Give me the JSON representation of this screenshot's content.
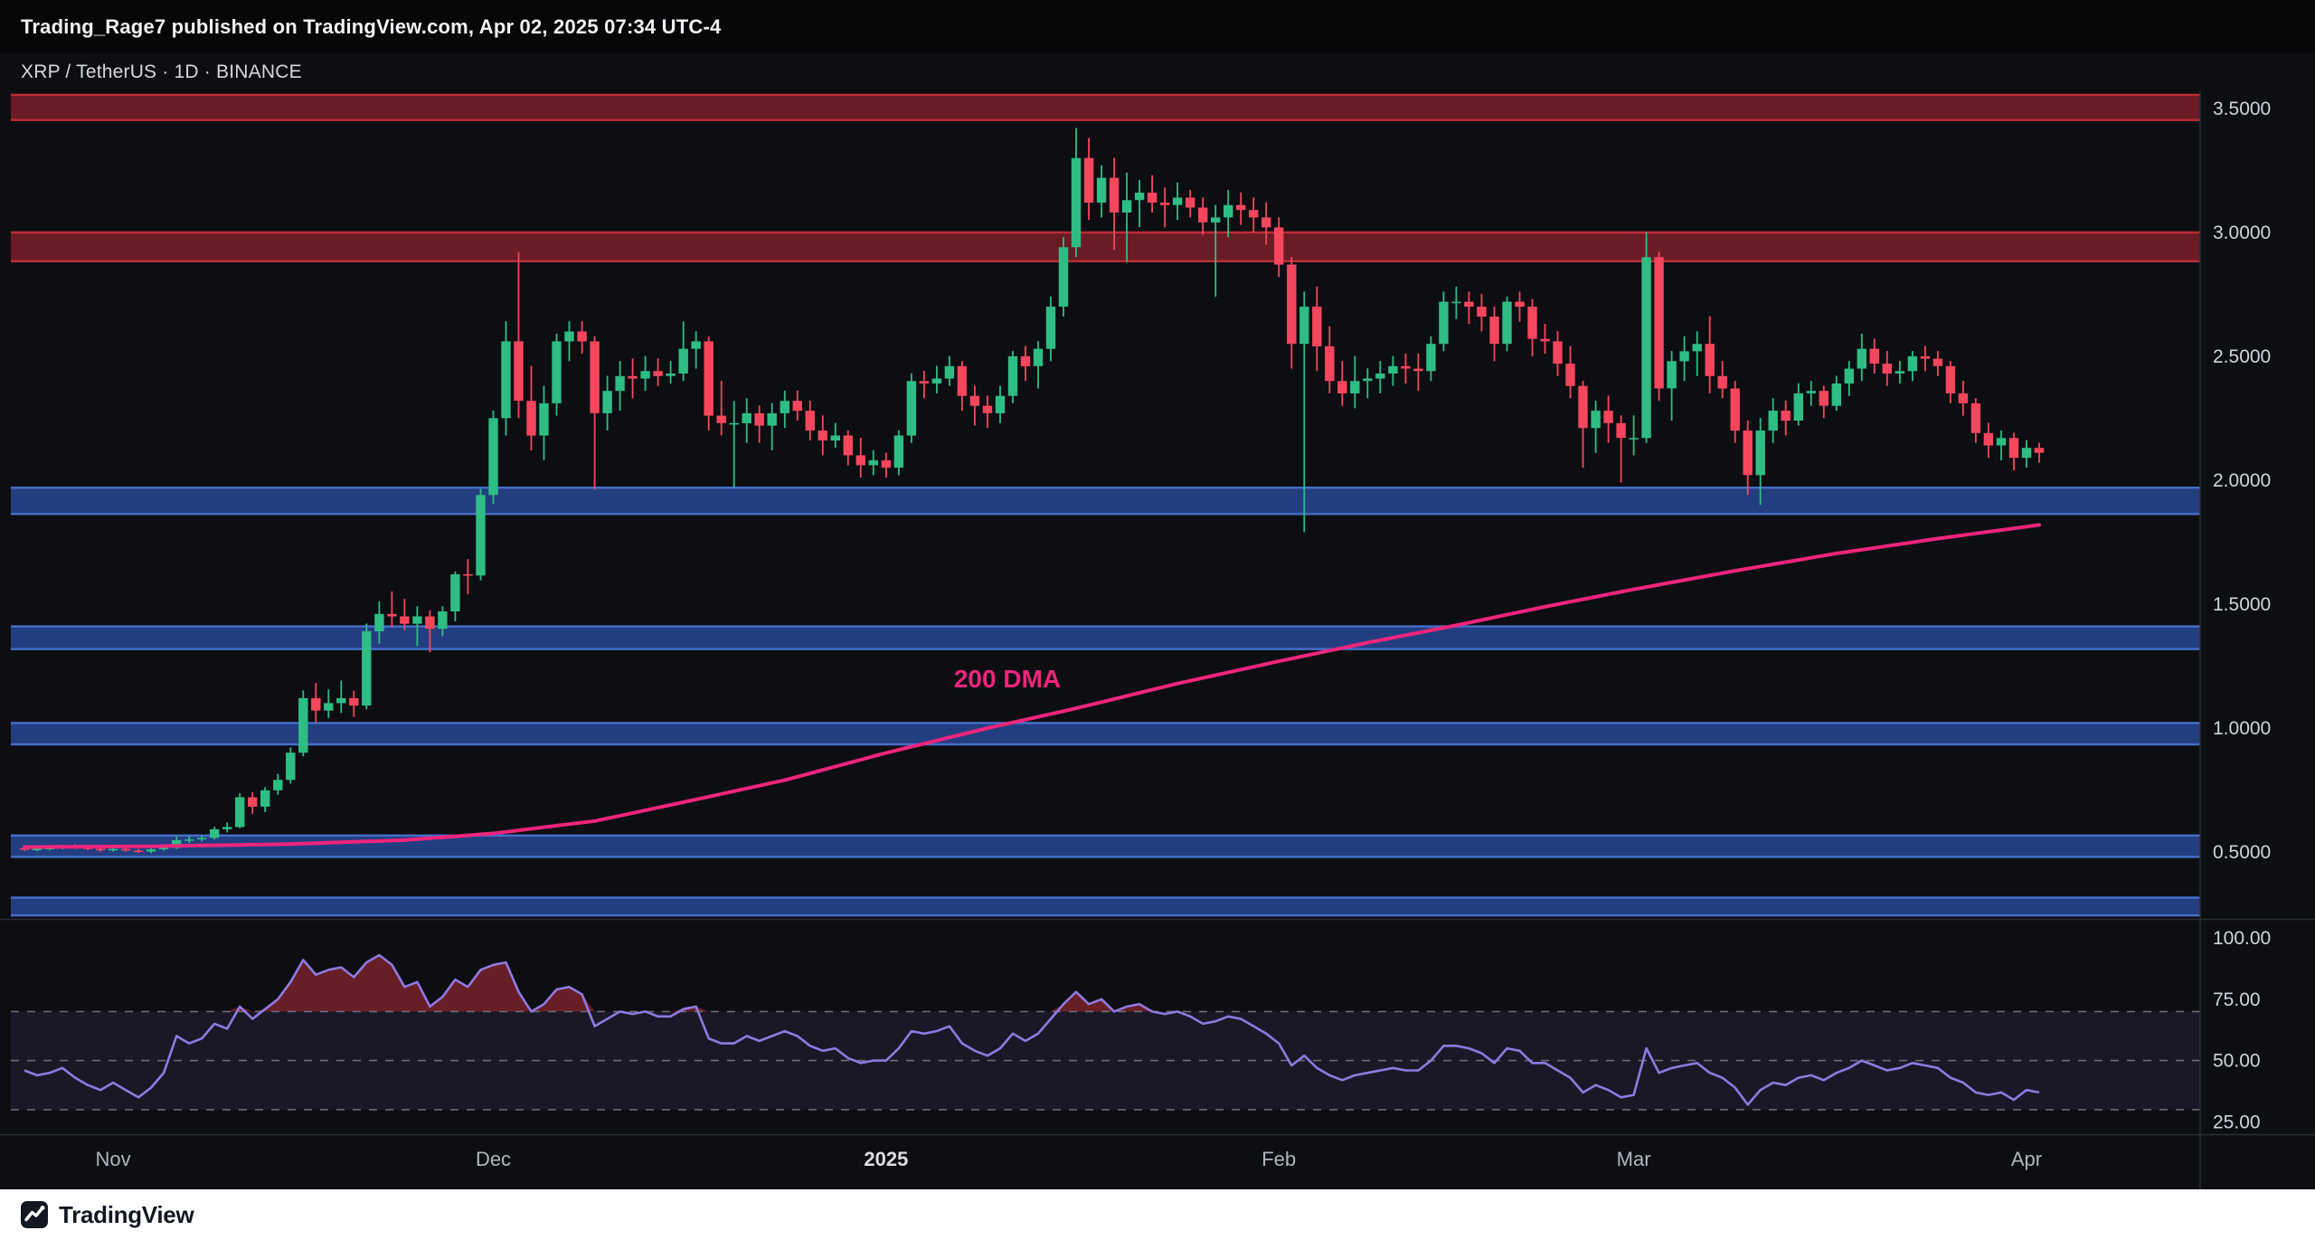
{
  "publish_bar": {
    "text": "Trading_Rage7 published on TradingView.com, Apr 02, 2025 07:34 UTC-4"
  },
  "chart_header": {
    "symbol_line": "XRP / TetherUS · 1D · BINANCE"
  },
  "footer": {
    "brand": "TradingView",
    "logo": "tradingview-logo"
  },
  "colors": {
    "chart_bg": "#0d0e12",
    "up": "#2ebd85",
    "down": "#f6465d",
    "dma": "#f0257c",
    "rsi_line": "#8f7ae0",
    "rsi_overbought_fill": "rgba(242,54,69,0.40)",
    "rsi_band_fill": "rgba(143,122,224,0.10)",
    "resistance_fill": "rgba(184,39,50,0.55)",
    "resistance_edge": "rgba(196,48,58,0.90)",
    "support_fill": "rgba(45,82,170,0.72)",
    "support_edge": "rgba(74,115,210,0.90)",
    "axis_text": "#d1d4dc",
    "month_text": "#b2b5be",
    "year_text": "#dddee2",
    "divider": "#2a2e39",
    "dashed": "#787b86"
  },
  "chart_data": {
    "type": "candlestick",
    "symbol": "XRP / TetherUS",
    "interval": "1D",
    "exchange": "BINANCE",
    "grid": false,
    "legend_position": "none",
    "price_axis": {
      "min": 0.23,
      "max": 3.57,
      "ticks": [
        {
          "v": 3.5,
          "label": "3.5000"
        },
        {
          "v": 3.0,
          "label": "3.0000"
        },
        {
          "v": 2.5,
          "label": "2.5000"
        },
        {
          "v": 2.0,
          "label": "2.0000"
        },
        {
          "v": 1.5,
          "label": "1.5000"
        },
        {
          "v": 1.0,
          "label": "1.0000"
        },
        {
          "v": 0.5,
          "label": "0.5000"
        }
      ]
    },
    "rsi_axis": {
      "min": 20,
      "max": 107,
      "ticks": [
        {
          "v": 100,
          "label": "100.00"
        },
        {
          "v": 75,
          "label": "75.00"
        },
        {
          "v": 50,
          "label": "50.00"
        },
        {
          "v": 25,
          "label": "25.00"
        }
      ],
      "levels": [
        70,
        50,
        30
      ]
    },
    "x_labels": [
      {
        "i": 7,
        "label": "Nov"
      },
      {
        "i": 37,
        "label": "Dec"
      },
      {
        "i": 68,
        "label": "2025",
        "bold": true
      },
      {
        "i": 99,
        "label": "Feb"
      },
      {
        "i": 127,
        "label": "Mar"
      },
      {
        "i": 158,
        "label": "Apr"
      }
    ],
    "resistance_zones": [
      {
        "from": 3.45,
        "to": 3.56
      },
      {
        "from": 2.88,
        "to": 3.005
      }
    ],
    "support_zones": [
      {
        "from": 1.86,
        "to": 1.975
      },
      {
        "from": 1.315,
        "to": 1.415
      },
      {
        "from": 0.93,
        "to": 1.025
      },
      {
        "from": 0.476,
        "to": 0.571
      },
      {
        "from": 0.24,
        "to": 0.32
      }
    ],
    "dma_label": "200 DMA",
    "dma_points": [
      [
        0,
        0.52
      ],
      [
        10,
        0.523
      ],
      [
        21,
        0.532
      ],
      [
        30,
        0.548
      ],
      [
        37,
        0.575
      ],
      [
        45,
        0.625
      ],
      [
        51,
        0.69
      ],
      [
        60,
        0.79
      ],
      [
        68,
        0.9
      ],
      [
        76,
        1.0
      ],
      [
        83,
        1.08
      ],
      [
        91,
        1.18
      ],
      [
        99,
        1.27
      ],
      [
        106,
        1.345
      ],
      [
        113,
        1.415
      ],
      [
        120,
        1.49
      ],
      [
        127,
        1.56
      ],
      [
        135,
        1.635
      ],
      [
        143,
        1.705
      ],
      [
        151,
        1.765
      ],
      [
        159,
        1.82
      ]
    ],
    "candles": [
      [
        0.515,
        0.527,
        0.505,
        0.51
      ],
      [
        0.51,
        0.519,
        0.503,
        0.513
      ],
      [
        0.513,
        0.521,
        0.507,
        0.517
      ],
      [
        0.517,
        0.529,
        0.511,
        0.523
      ],
      [
        0.523,
        0.531,
        0.512,
        0.518
      ],
      [
        0.518,
        0.524,
        0.507,
        0.513
      ],
      [
        0.513,
        0.52,
        0.5,
        0.508
      ],
      [
        0.508,
        0.518,
        0.502,
        0.512
      ],
      [
        0.512,
        0.517,
        0.501,
        0.506
      ],
      [
        0.506,
        0.512,
        0.496,
        0.502
      ],
      [
        0.502,
        0.515,
        0.495,
        0.511
      ],
      [
        0.511,
        0.523,
        0.505,
        0.517
      ],
      [
        0.517,
        0.562,
        0.512,
        0.548
      ],
      [
        0.548,
        0.563,
        0.537,
        0.551
      ],
      [
        0.551,
        0.566,
        0.543,
        0.557
      ],
      [
        0.557,
        0.602,
        0.55,
        0.592
      ],
      [
        0.592,
        0.619,
        0.579,
        0.601
      ],
      [
        0.601,
        0.737,
        0.596,
        0.721
      ],
      [
        0.721,
        0.742,
        0.654,
        0.683
      ],
      [
        0.683,
        0.762,
        0.661,
        0.749
      ],
      [
        0.749,
        0.816,
        0.731,
        0.791
      ],
      [
        0.791,
        0.922,
        0.776,
        0.901
      ],
      [
        0.901,
        1.152,
        0.886,
        1.121
      ],
      [
        1.121,
        1.182,
        1.021,
        1.071
      ],
      [
        1.071,
        1.156,
        1.041,
        1.101
      ],
      [
        1.101,
        1.192,
        1.061,
        1.121
      ],
      [
        1.121,
        1.151,
        1.046,
        1.091
      ],
      [
        1.091,
        1.422,
        1.076,
        1.391
      ],
      [
        1.391,
        1.512,
        1.341,
        1.461
      ],
      [
        1.461,
        1.552,
        1.406,
        1.451
      ],
      [
        1.451,
        1.522,
        1.396,
        1.421
      ],
      [
        1.421,
        1.492,
        1.331,
        1.451
      ],
      [
        1.451,
        1.476,
        1.306,
        1.401
      ],
      [
        1.401,
        1.492,
        1.371,
        1.471
      ],
      [
        1.471,
        1.632,
        1.431,
        1.621
      ],
      [
        1.621,
        1.682,
        1.541,
        1.616
      ],
      [
        1.616,
        1.966,
        1.596,
        1.941
      ],
      [
        1.941,
        2.282,
        1.906,
        2.251
      ],
      [
        2.251,
        2.642,
        2.181,
        2.561
      ],
      [
        2.561,
        2.921,
        2.251,
        2.321
      ],
      [
        2.321,
        2.462,
        2.121,
        2.181
      ],
      [
        2.181,
        2.382,
        2.081,
        2.311
      ],
      [
        2.311,
        2.592,
        2.261,
        2.561
      ],
      [
        2.561,
        2.642,
        2.481,
        2.601
      ],
      [
        2.601,
        2.642,
        2.511,
        2.561
      ],
      [
        2.561,
        2.582,
        1.962,
        2.271
      ],
      [
        2.271,
        2.422,
        2.201,
        2.361
      ],
      [
        2.361,
        2.482,
        2.281,
        2.421
      ],
      [
        2.421,
        2.492,
        2.331,
        2.411
      ],
      [
        2.411,
        2.502,
        2.361,
        2.441
      ],
      [
        2.441,
        2.492,
        2.381,
        2.421
      ],
      [
        2.421,
        2.482,
        2.391,
        2.431
      ],
      [
        2.431,
        2.642,
        2.401,
        2.531
      ],
      [
        2.531,
        2.602,
        2.451,
        2.561
      ],
      [
        2.561,
        2.581,
        2.201,
        2.261
      ],
      [
        2.261,
        2.402,
        2.181,
        2.231
      ],
      [
        2.231,
        2.321,
        1.971,
        2.231
      ],
      [
        2.231,
        2.332,
        2.151,
        2.271
      ],
      [
        2.271,
        2.302,
        2.151,
        2.221
      ],
      [
        2.221,
        2.312,
        2.121,
        2.271
      ],
      [
        2.271,
        2.362,
        2.211,
        2.321
      ],
      [
        2.321,
        2.362,
        2.241,
        2.281
      ],
      [
        2.281,
        2.322,
        2.161,
        2.201
      ],
      [
        2.201,
        2.262,
        2.101,
        2.161
      ],
      [
        2.161,
        2.232,
        2.131,
        2.181
      ],
      [
        2.181,
        2.202,
        2.061,
        2.101
      ],
      [
        2.101,
        2.172,
        2.011,
        2.061
      ],
      [
        2.061,
        2.122,
        2.021,
        2.081
      ],
      [
        2.081,
        2.112,
        2.011,
        2.051
      ],
      [
        2.051,
        2.202,
        2.021,
        2.181
      ],
      [
        2.181,
        2.432,
        2.151,
        2.401
      ],
      [
        2.401,
        2.442,
        2.331,
        2.391
      ],
      [
        2.391,
        2.462,
        2.351,
        2.411
      ],
      [
        2.411,
        2.502,
        2.381,
        2.461
      ],
      [
        2.461,
        2.482,
        2.281,
        2.341
      ],
      [
        2.341,
        2.382,
        2.221,
        2.301
      ],
      [
        2.301,
        2.342,
        2.211,
        2.271
      ],
      [
        2.271,
        2.382,
        2.231,
        2.341
      ],
      [
        2.341,
        2.522,
        2.311,
        2.501
      ],
      [
        2.501,
        2.542,
        2.401,
        2.461
      ],
      [
        2.461,
        2.562,
        2.371,
        2.531
      ],
      [
        2.531,
        2.742,
        2.481,
        2.701
      ],
      [
        2.701,
        2.982,
        2.661,
        2.941
      ],
      [
        2.941,
        3.422,
        2.901,
        3.301
      ],
      [
        3.301,
        3.382,
        3.051,
        3.121
      ],
      [
        3.121,
        3.272,
        3.061,
        3.221
      ],
      [
        3.221,
        3.302,
        2.931,
        3.081
      ],
      [
        3.081,
        3.242,
        2.881,
        3.131
      ],
      [
        3.131,
        3.212,
        3.021,
        3.161
      ],
      [
        3.161,
        3.232,
        3.081,
        3.121
      ],
      [
        3.121,
        3.182,
        3.021,
        3.111
      ],
      [
        3.111,
        3.202,
        3.051,
        3.141
      ],
      [
        3.141,
        3.172,
        3.061,
        3.101
      ],
      [
        3.101,
        3.142,
        2.991,
        3.041
      ],
      [
        3.041,
        3.112,
        2.741,
        3.061
      ],
      [
        3.061,
        3.172,
        2.981,
        3.111
      ],
      [
        3.111,
        3.162,
        3.031,
        3.091
      ],
      [
        3.091,
        3.142,
        3.001,
        3.061
      ],
      [
        3.061,
        3.122,
        2.951,
        3.021
      ],
      [
        3.021,
        3.062,
        2.821,
        2.871
      ],
      [
        2.871,
        2.902,
        2.451,
        2.551
      ],
      [
        2.551,
        2.762,
        1.791,
        2.701
      ],
      [
        2.701,
        2.782,
        2.441,
        2.541
      ],
      [
        2.541,
        2.622,
        2.351,
        2.401
      ],
      [
        2.401,
        2.482,
        2.301,
        2.351
      ],
      [
        2.351,
        2.502,
        2.291,
        2.401
      ],
      [
        2.401,
        2.452,
        2.331,
        2.411
      ],
      [
        2.411,
        2.482,
        2.351,
        2.431
      ],
      [
        2.431,
        2.502,
        2.381,
        2.461
      ],
      [
        2.461,
        2.512,
        2.391,
        2.451
      ],
      [
        2.451,
        2.512,
        2.361,
        2.441
      ],
      [
        2.441,
        2.582,
        2.401,
        2.551
      ],
      [
        2.551,
        2.762,
        2.521,
        2.721
      ],
      [
        2.721,
        2.782,
        2.651,
        2.721
      ],
      [
        2.721,
        2.762,
        2.631,
        2.701
      ],
      [
        2.701,
        2.752,
        2.601,
        2.661
      ],
      [
        2.661,
        2.702,
        2.481,
        2.551
      ],
      [
        2.551,
        2.742,
        2.521,
        2.721
      ],
      [
        2.721,
        2.762,
        2.641,
        2.701
      ],
      [
        2.701,
        2.732,
        2.501,
        2.571
      ],
      [
        2.571,
        2.632,
        2.511,
        2.561
      ],
      [
        2.561,
        2.602,
        2.421,
        2.471
      ],
      [
        2.471,
        2.542,
        2.331,
        2.381
      ],
      [
        2.381,
        2.402,
        2.051,
        2.211
      ],
      [
        2.211,
        2.322,
        2.111,
        2.281
      ],
      [
        2.281,
        2.342,
        2.151,
        2.231
      ],
      [
        2.231,
        2.262,
        1.991,
        2.171
      ],
      [
        2.171,
        2.262,
        2.101,
        2.171
      ],
      [
        2.171,
        3.002,
        2.151,
        2.901
      ],
      [
        2.901,
        2.922,
        2.321,
        2.371
      ],
      [
        2.371,
        2.522,
        2.241,
        2.481
      ],
      [
        2.481,
        2.582,
        2.401,
        2.521
      ],
      [
        2.521,
        2.602,
        2.421,
        2.551
      ],
      [
        2.551,
        2.662,
        2.351,
        2.421
      ],
      [
        2.421,
        2.482,
        2.331,
        2.371
      ],
      [
        2.371,
        2.402,
        2.151,
        2.201
      ],
      [
        2.201,
        2.242,
        1.941,
        2.021
      ],
      [
        2.021,
        2.252,
        1.901,
        2.201
      ],
      [
        2.201,
        2.332,
        2.151,
        2.281
      ],
      [
        2.281,
        2.322,
        2.181,
        2.241
      ],
      [
        2.241,
        2.392,
        2.221,
        2.351
      ],
      [
        2.351,
        2.402,
        2.301,
        2.361
      ],
      [
        2.361,
        2.382,
        2.251,
        2.301
      ],
      [
        2.301,
        2.422,
        2.281,
        2.391
      ],
      [
        2.391,
        2.482,
        2.341,
        2.451
      ],
      [
        2.451,
        2.592,
        2.401,
        2.531
      ],
      [
        2.531,
        2.572,
        2.431,
        2.471
      ],
      [
        2.471,
        2.522,
        2.381,
        2.431
      ],
      [
        2.431,
        2.482,
        2.391,
        2.441
      ],
      [
        2.441,
        2.522,
        2.401,
        2.501
      ],
      [
        2.501,
        2.542,
        2.441,
        2.491
      ],
      [
        2.491,
        2.522,
        2.421,
        2.461
      ],
      [
        2.461,
        2.482,
        2.311,
        2.351
      ],
      [
        2.351,
        2.402,
        2.261,
        2.311
      ],
      [
        2.311,
        2.332,
        2.151,
        2.191
      ],
      [
        2.191,
        2.232,
        2.091,
        2.141
      ],
      [
        2.141,
        2.202,
        2.081,
        2.171
      ],
      [
        2.171,
        2.192,
        2.041,
        2.091
      ],
      [
        2.091,
        2.162,
        2.051,
        2.131
      ],
      [
        2.131,
        2.152,
        2.071,
        2.111
      ]
    ],
    "rsi": [
      46,
      44,
      45,
      47,
      43,
      40,
      38,
      41,
      38,
      35,
      39,
      45,
      60,
      57,
      59,
      65,
      63,
      72,
      67,
      71,
      75,
      82,
      91,
      85,
      87,
      88,
      84,
      90,
      93,
      89,
      80,
      82,
      72,
      76,
      83,
      80,
      87,
      89,
      90,
      78,
      70,
      73,
      79,
      80,
      77,
      64,
      67,
      70,
      69,
      70,
      68,
      68,
      71,
      72,
      59,
      57,
      57,
      60,
      58,
      60,
      62,
      60,
      56,
      54,
      55,
      51,
      49,
      50,
      50,
      55,
      62,
      61,
      62,
      64,
      57,
      54,
      52,
      55,
      61,
      58,
      61,
      67,
      73,
      78,
      73,
      75,
      70,
      72,
      73,
      70,
      69,
      70,
      68,
      65,
      66,
      68,
      67,
      64,
      61,
      57,
      48,
      52,
      47,
      44,
      42,
      44,
      45,
      46,
      47,
      46,
      46,
      50,
      56,
      56,
      55,
      53,
      49,
      55,
      54,
      49,
      49,
      46,
      43,
      37,
      40,
      38,
      35,
      36,
      55,
      45,
      47,
      48,
      49,
      45,
      43,
      39,
      32,
      38,
      41,
      40,
      43,
      44,
      42,
      45,
      47,
      50,
      48,
      46,
      47,
      49,
      48,
      47,
      43,
      41,
      37,
      36,
      37,
      34,
      38,
      37
    ]
  }
}
